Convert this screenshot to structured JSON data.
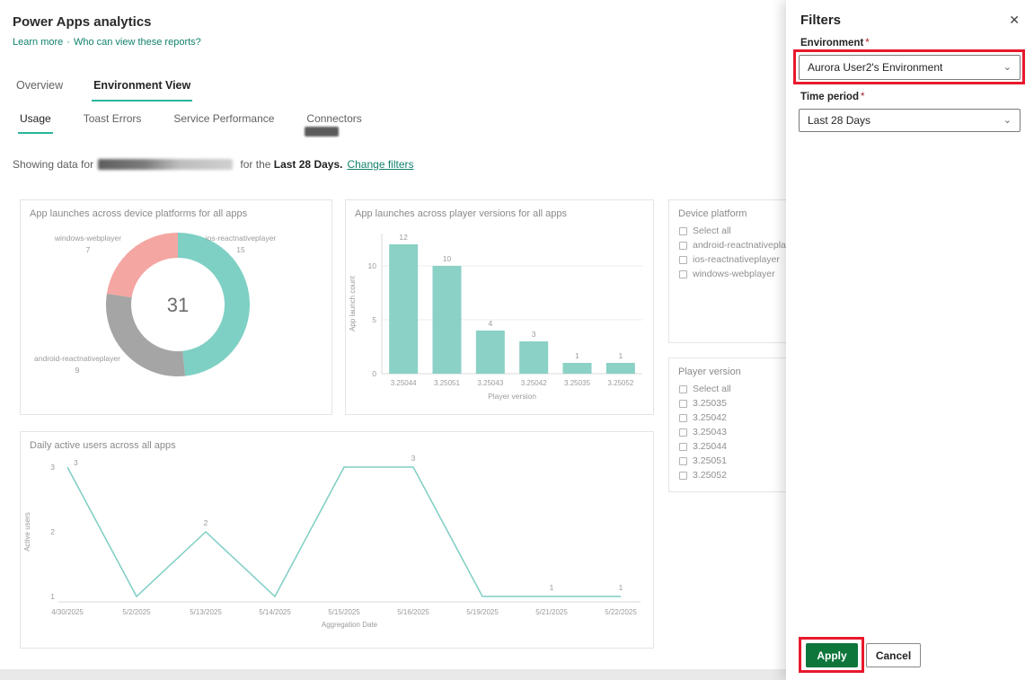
{
  "page": {
    "title": "Power Apps analytics",
    "learn_more": "Learn more",
    "links_separator": "·",
    "who_can_view": "Who can view these reports?"
  },
  "tabs": [
    {
      "label": "Overview"
    },
    {
      "label": "Environment View"
    }
  ],
  "subtabs": [
    {
      "label": "Usage"
    },
    {
      "label": "Toast Errors"
    },
    {
      "label": "Service Performance"
    },
    {
      "label": "Connectors"
    }
  ],
  "showing": {
    "prefix": "Showing data for",
    "middle": " for the ",
    "period": "Last 28 Days.",
    "change_filters": "Change filters"
  },
  "device_platform_filter": {
    "title": "Device platform",
    "options": [
      "Select all",
      "android-reactnativeplayer",
      "ios-reactnativeplayer",
      "windows-webplayer"
    ]
  },
  "player_version_filter": {
    "title": "Player version",
    "options": [
      "Select all",
      "3.25035",
      "3.25042",
      "3.25043",
      "3.25044",
      "3.25051",
      "3.25052"
    ]
  },
  "filters_panel": {
    "title": "Filters",
    "close_icon": "✕",
    "chevron_icon": "⌄",
    "environment_label": "Environment",
    "required_mark": "*",
    "environment_value": "Aurora User2's Environment",
    "time_period_label": "Time period",
    "time_period_value": "Last 28 Days",
    "apply_label": "Apply",
    "cancel_label": "Cancel",
    "apply_color": "#0e753b",
    "annotation_color": "#e8192c"
  },
  "chart_data": [
    {
      "type": "pie",
      "donut": true,
      "title": "App launches across device platforms for all apps",
      "center_total": 31,
      "segments": [
        {
          "label": "ios-reactnativeplayer",
          "value": 15,
          "color": "#7ed0c4"
        },
        {
          "label": "android-reactnativeplayer",
          "value": 9,
          "color": "#a5a5a5"
        },
        {
          "label": "windows-webplayer",
          "value": 7,
          "color": "#f4a6a2"
        }
      ]
    },
    {
      "type": "bar",
      "title": "App launches across player versions for all apps",
      "categories": [
        "3.25044",
        "3.25051",
        "3.25043",
        "3.25042",
        "3.25035",
        "3.25052"
      ],
      "values": [
        12,
        10,
        4,
        3,
        1,
        1
      ],
      "xlabel": "Player version",
      "ylabel": "App launch count",
      "yticks": [
        0,
        5,
        10
      ],
      "ylim": [
        0,
        13
      ],
      "bar_color": "#8bd1c5",
      "grid": true
    },
    {
      "type": "line",
      "title": "Daily active users across all apps",
      "x": [
        "4/30/2025",
        "5/2/2025",
        "5/13/2025",
        "5/14/2025",
        "5/15/2025",
        "5/16/2025",
        "5/19/2025",
        "5/21/2025",
        "5/22/2025"
      ],
      "values": [
        3,
        1,
        2,
        1,
        3,
        3,
        1,
        1,
        1
      ],
      "point_labels": {
        "0": "3",
        "2": "2",
        "5": "3",
        "7": "1",
        "8": "1"
      },
      "xlabel": "Aggregation Date",
      "ylabel": "Active users",
      "yticks": [
        1,
        2,
        3
      ],
      "ylim": [
        1,
        3
      ],
      "line_color": "#7fcec3"
    }
  ]
}
